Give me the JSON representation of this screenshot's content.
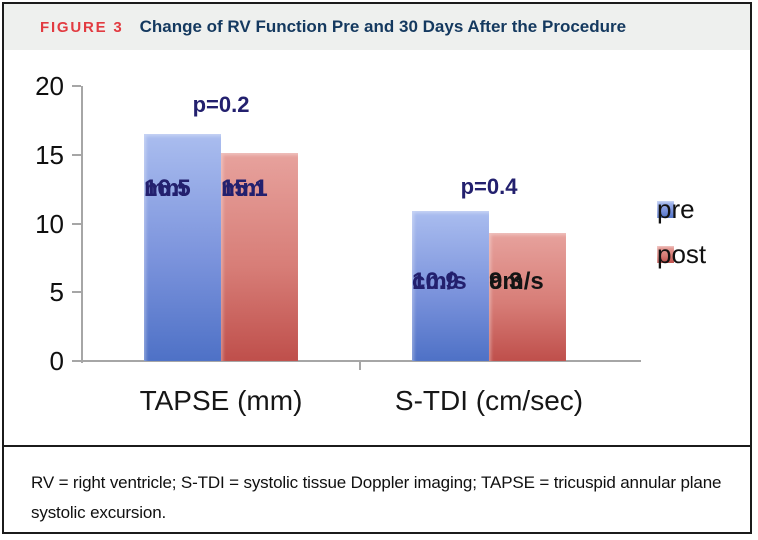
{
  "figure": {
    "label": "FIGURE 3",
    "title": "Change of RV Function Pre and 30 Days After the Procedure",
    "caption": "RV = right ventricle; S-TDI = systolic tissue Doppler imaging; TAPSE = tricuspid annular plane systolic excursion."
  },
  "colors": {
    "figure_label_red": "#e23b41",
    "title_navy": "#14395f",
    "header_bg": "#eef0ee",
    "border_black": "#1b1b1b",
    "axis_gray": "#a6a6a6",
    "p_value_navy": "#23206e",
    "pre_top": "#aabdef",
    "pre_mid": "#7b93dc",
    "pre_bottom": "#4e71c6",
    "post_top": "#e7a29d",
    "post_mid": "#d77d77",
    "post_bottom": "#bf4f4b"
  },
  "chart_data": {
    "type": "bar",
    "categories": [
      "TAPSE (mm)",
      "S-TDI (cm/sec)"
    ],
    "units": [
      "mm",
      "cm/s"
    ],
    "series": [
      {
        "name": "pre",
        "values": [
          16.5,
          10.9
        ]
      },
      {
        "name": "post",
        "values": [
          15.1,
          9.3
        ]
      }
    ],
    "annotations": [
      {
        "text": "p=0.2",
        "group": "TAPSE (mm)"
      },
      {
        "text": "p=0.4",
        "group": "S-TDI (cm/sec)"
      }
    ],
    "bar_value_labels": [
      [
        "16.5 mm",
        "15.1 mm"
      ],
      [
        "10.9 cm/s",
        "9.3 cm/s"
      ]
    ],
    "bar_label_colors": [
      [
        "#23206e",
        "#23206e"
      ],
      [
        "#23206e",
        "#141414"
      ]
    ],
    "ylim": [
      0,
      20
    ],
    "yticks": [
      0,
      5,
      10,
      15,
      20
    ],
    "grid": false,
    "legend": {
      "position": "right",
      "entries": [
        "pre",
        "post"
      ]
    }
  }
}
